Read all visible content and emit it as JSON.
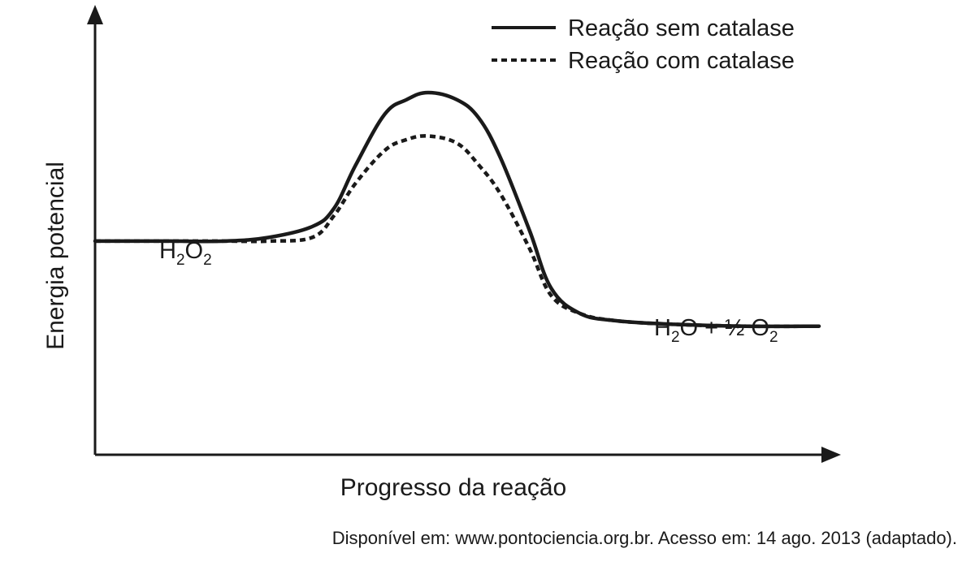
{
  "chart_data": {
    "type": "line",
    "xlabel": "Progresso da reação",
    "ylabel": "Energia potencial",
    "axis_ticks": false,
    "grid": false,
    "legend_position": "top-right",
    "series": [
      {
        "name": "Reação sem catalase",
        "style": "solid",
        "x": [
          0,
          10,
          18,
          24,
          30,
          33,
          36,
          40,
          43,
          46,
          50,
          53,
          56,
          60,
          63,
          67,
          72,
          80,
          90,
          100
        ],
        "y": [
          0.59,
          0.59,
          0.59,
          0.6,
          0.63,
          0.68,
          0.8,
          0.94,
          0.98,
          1.0,
          0.98,
          0.93,
          0.82,
          0.62,
          0.46,
          0.39,
          0.37,
          0.36,
          0.355,
          0.355
        ]
      },
      {
        "name": "Reação com catalase",
        "style": "dotted",
        "x": [
          0,
          10,
          18,
          24,
          30,
          33,
          36,
          40,
          43,
          46,
          50,
          53,
          56,
          60,
          63,
          67,
          72,
          80,
          90,
          100
        ],
        "y": [
          0.59,
          0.59,
          0.59,
          0.59,
          0.6,
          0.66,
          0.75,
          0.84,
          0.87,
          0.88,
          0.86,
          0.8,
          0.72,
          0.57,
          0.44,
          0.39,
          0.37,
          0.36,
          0.355,
          0.355
        ]
      }
    ],
    "annotations": {
      "reactant": {
        "pre": "H",
        "sub1": "2",
        "mid": "O",
        "sub2": "2"
      },
      "product": {
        "pre": "H",
        "sub1": "2",
        "mid": "O + ½ O",
        "sub2": "2"
      }
    }
  },
  "colors": {
    "line": "#1a1a1a",
    "background": "#ffffff"
  },
  "source": "Disponível em: www.pontociencia.org.br.  Acesso em: 14 ago. 2013 (adaptado)."
}
